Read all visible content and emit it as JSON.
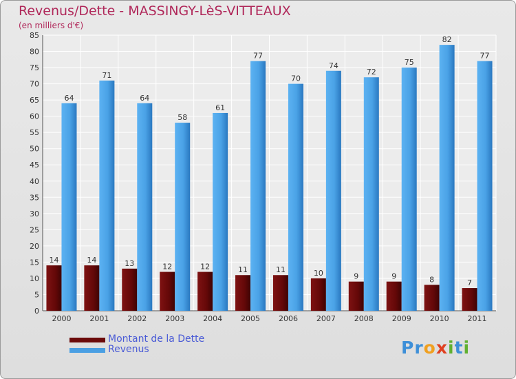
{
  "title": "Revenus/Dette - MASSINGY-LèS-VITTEAUX",
  "subtitle": "(en milliers d'€)",
  "chart_data": {
    "type": "bar",
    "title": "Revenus/Dette - MASSINGY-LèS-VITTEAUX",
    "subtitle": "(en milliers d'€)",
    "categories": [
      "2000",
      "2001",
      "2002",
      "2003",
      "2004",
      "2005",
      "2006",
      "2007",
      "2008",
      "2009",
      "2010",
      "2011"
    ],
    "series": [
      {
        "name": "Montant de la Dette",
        "color": "#6b0a0a",
        "values": [
          14,
          14,
          13,
          12,
          12,
          11,
          11,
          10,
          9,
          9,
          8,
          7
        ]
      },
      {
        "name": "Revenus",
        "color": "#4a9fe3",
        "values": [
          64,
          71,
          64,
          58,
          61,
          77,
          70,
          74,
          72,
          75,
          82,
          77
        ]
      }
    ],
    "ylim": [
      0,
      85
    ],
    "yticks": [
      0,
      5,
      10,
      15,
      20,
      25,
      30,
      35,
      40,
      45,
      50,
      55,
      60,
      65,
      70,
      75,
      80,
      85
    ],
    "grid": true,
    "legend_position": "bottom-left"
  },
  "logo": {
    "letters": [
      {
        "ch": "P",
        "color": "#3d8fd8"
      },
      {
        "ch": "r",
        "color": "#3d8fd8"
      },
      {
        "ch": "o",
        "color": "#f0a020"
      },
      {
        "ch": "x",
        "color": "#e04020"
      },
      {
        "ch": "i",
        "color": "#60b030"
      },
      {
        "ch": "t",
        "color": "#3d8fd8"
      },
      {
        "ch": "i",
        "color": "#60b030"
      }
    ]
  }
}
